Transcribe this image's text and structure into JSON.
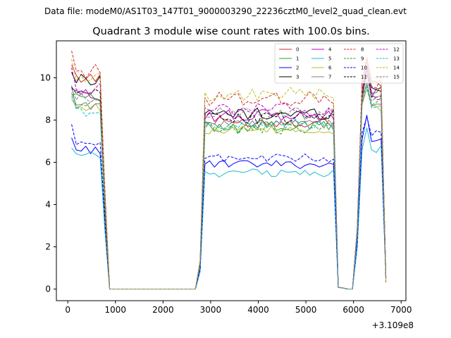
{
  "chart_data": {
    "type": "line",
    "suptitle": "Data file: modeM0/AS1T03_147T01_9000003290_22236cztM0_level2_quad_clean.evt",
    "title": "Quadrant 3 module wise count rates with 100.0s bins.",
    "xlabel": "",
    "ylabel": "",
    "x_offset_label": "+3.109e8",
    "xlim": [
      -240,
      7100
    ],
    "ylim": [
      -0.55,
      11.75
    ],
    "xticks": [
      0,
      1000,
      2000,
      3000,
      4000,
      5000,
      6000,
      7000
    ],
    "xtick_labels": [
      "0",
      "1000",
      "2000",
      "3000",
      "4000",
      "5000",
      "6000",
      "7000"
    ],
    "yticks": [
      0,
      2,
      4,
      6,
      8,
      10
    ],
    "ytick_labels": [
      "0",
      "2",
      "4",
      "6",
      "8",
      "10"
    ],
    "legend_position": "top-right",
    "bin_width_s": 100,
    "segments": [
      {
        "x_start": 79,
        "x_end": 679
      },
      {
        "x_start": 2879,
        "x_end": 5579
      },
      {
        "x_start": 6179,
        "x_end": 6579
      }
    ],
    "series": [
      {
        "name": "0",
        "color": "#d62728",
        "dash": false,
        "levels": [
          10.0,
          7.9,
          9.8
        ],
        "spread": 0.25
      },
      {
        "name": "1",
        "color": "#2ca02c",
        "dash": false,
        "levels": [
          9.2,
          7.7,
          9.4
        ],
        "spread": 0.3
      },
      {
        "name": "2",
        "color": "#0000ff",
        "dash": false,
        "levels": [
          6.6,
          5.9,
          7.1
        ],
        "spread": 0.2
      },
      {
        "name": "3",
        "color": "#000000",
        "dash": false,
        "levels": [
          9.9,
          8.3,
          9.4
        ],
        "spread": 0.3
      },
      {
        "name": "4",
        "color": "#bf00bf",
        "dash": false,
        "levels": [
          9.2,
          8.2,
          9.3
        ],
        "spread": 0.3
      },
      {
        "name": "5",
        "color": "#17becf",
        "dash": false,
        "levels": [
          6.3,
          5.5,
          6.6
        ],
        "spread": 0.2
      },
      {
        "name": "6",
        "color": "#bcbd22",
        "dash": false,
        "levels": [
          8.6,
          7.5,
          8.6
        ],
        "spread": 0.2
      },
      {
        "name": "7",
        "color": "#7f7f7f",
        "dash": false,
        "levels": [
          8.7,
          7.8,
          8.7
        ],
        "spread": 0.2
      },
      {
        "name": "8",
        "color": "#d62728",
        "dash": true,
        "levels": [
          10.3,
          9.0,
          9.7
        ],
        "spread": 0.35
      },
      {
        "name": "9",
        "color": "#2ca02c",
        "dash": true,
        "levels": [
          8.8,
          7.6,
          8.9
        ],
        "spread": 0.3
      },
      {
        "name": "10",
        "color": "#0000ff",
        "dash": true,
        "levels": [
          6.8,
          6.2,
          7.3
        ],
        "spread": 0.2
      },
      {
        "name": "11",
        "color": "#000000",
        "dash": true,
        "levels": [
          9.2,
          8.1,
          9.0
        ],
        "spread": 0.3
      },
      {
        "name": "12",
        "color": "#bf00bf",
        "dash": true,
        "levels": [
          9.5,
          8.5,
          9.2
        ],
        "spread": 0.3
      },
      {
        "name": "13",
        "color": "#17becf",
        "dash": true,
        "levels": [
          8.4,
          7.8,
          8.6
        ],
        "spread": 0.25
      },
      {
        "name": "14",
        "color": "#bcbd22",
        "dash": true,
        "levels": [
          10.0,
          9.2,
          9.8
        ],
        "spread": 0.35
      },
      {
        "name": "15",
        "color": "#7f7f7f",
        "dash": true,
        "levels": [
          9.0,
          8.3,
          9.1
        ],
        "spread": 0.3
      }
    ]
  }
}
